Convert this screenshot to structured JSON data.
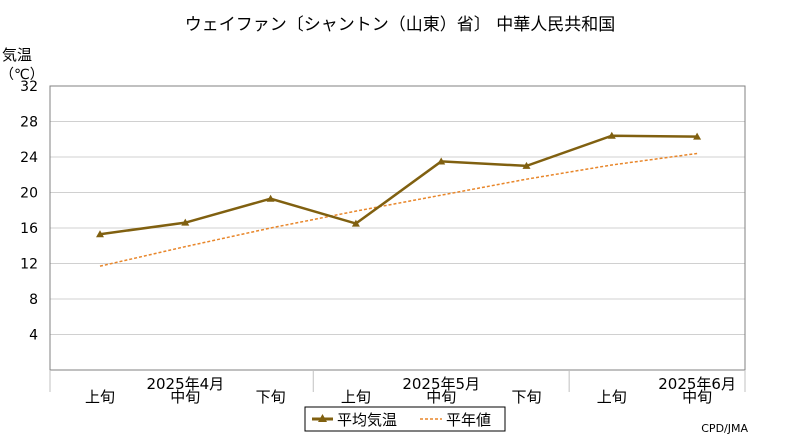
{
  "chart_data": {
    "type": "line",
    "title": "ウェイファン〔シャントン（山東）省〕 中華人民共和国",
    "ylabel": "気温",
    "yunit": "（℃）",
    "ylim": [
      0,
      32
    ],
    "yticks": [
      4,
      8,
      12,
      16,
      20,
      24,
      28,
      32
    ],
    "grid": true,
    "x": [
      "2025-04 上旬",
      "2025-04 中旬",
      "2025-04 下旬",
      "2025-05 上旬",
      "2025-05 中旬",
      "2025-05 下旬",
      "2025-06 上旬",
      "2025-06 中旬"
    ],
    "xtick_labels": [
      "上旬",
      "中旬",
      "下旬",
      "上旬",
      "中旬",
      "下旬",
      "上旬",
      "中旬"
    ],
    "months": [
      {
        "label": "2025年4月"
      },
      {
        "label": "2025年5月"
      },
      {
        "label": "2025年6月"
      }
    ],
    "series": [
      {
        "name": "平均気温",
        "values": [
          15.3,
          16.6,
          19.3,
          16.5,
          23.5,
          23.0,
          26.4,
          26.3
        ],
        "color": "#806010",
        "style": "solid-marker"
      },
      {
        "name": "平年値",
        "values": [
          11.7,
          13.9,
          16.0,
          17.9,
          19.7,
          21.5,
          23.1,
          24.4
        ],
        "color": "#e8862a",
        "style": "dotted"
      }
    ],
    "legend": "bottom-center",
    "source": "CPD/JMA"
  }
}
